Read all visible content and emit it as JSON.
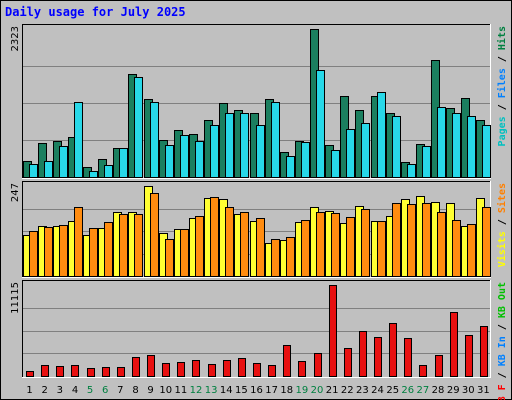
{
  "chart_data": {
    "type": "bar",
    "title": "Daily usage for July 2025",
    "categories": [
      "1",
      "2",
      "3",
      "4",
      "5",
      "6",
      "7",
      "8",
      "9",
      "10",
      "11",
      "12",
      "13",
      "14",
      "15",
      "16",
      "17",
      "18",
      "19",
      "20",
      "21",
      "22",
      "23",
      "24",
      "25",
      "26",
      "27",
      "28",
      "29",
      "30",
      "31"
    ],
    "weekend_days": [
      "5",
      "6",
      "12",
      "13",
      "19",
      "20",
      "26",
      "27"
    ],
    "panels": [
      {
        "max_label": "2323",
        "ylim": [
          0,
          2323
        ],
        "legend": [
          {
            "text": "Pages",
            "color": "#00c0c0"
          },
          {
            "text": " / ",
            "color": "#000000"
          },
          {
            "text": "Files",
            "color": "#0080ff"
          },
          {
            "text": " / ",
            "color": "#000000"
          },
          {
            "text": "Hits",
            "color": "#008040"
          }
        ],
        "series": [
          {
            "name": "Hits",
            "color": "#1b7f5f",
            "values": [
              250,
              540,
              560,
              620,
              150,
              280,
              460,
              1610,
              1220,
              580,
              730,
              680,
              890,
              1160,
              1050,
              1000,
              1220,
              390,
              570,
              2323,
              500,
              1270,
              1050,
              1270,
              1010,
              240,
              520,
              1840,
              1090,
              1240,
              890
            ]
          },
          {
            "name": "Files",
            "color": "#28d8e8",
            "values": [
              200,
              250,
              480,
              1170,
              100,
              190,
              450,
              1570,
              1180,
              500,
              660,
              570,
              810,
              1010,
              1000,
              820,
              1170,
              330,
              550,
              1680,
              430,
              760,
              850,
              1330,
              950,
              200,
              490,
              1100,
              1010,
              950,
              810
            ]
          }
        ]
      },
      {
        "max_label": "247",
        "ylim": [
          0,
          247
        ],
        "legend": [
          {
            "text": "Visits",
            "color": "#ffff00"
          },
          {
            "text": " / ",
            "color": "#000000"
          },
          {
            "text": "Sites",
            "color": "#ff8000"
          }
        ],
        "series": [
          {
            "name": "Visits",
            "color": "#ffff33",
            "values": [
              113,
              137,
              137,
              150,
              113,
              132,
              176,
              175,
              247,
              118,
              130,
              158,
              215,
              211,
              171,
              152,
              91,
              100,
              149,
              188,
              179,
              145,
              192,
              151,
              165,
              212,
              219,
              203,
              201,
              136,
              215
            ]
          },
          {
            "name": "Sites",
            "color": "#ff8c10",
            "values": [
              123,
              135,
              140,
              188,
              131,
              148,
              169,
              171,
              228,
              102,
              128,
              165,
              217,
              189,
              175,
              158,
              101,
              107,
              153,
              176,
              172,
              163,
              183,
              150,
              200,
              197,
              201,
              177,
              155,
              143,
              190
            ]
          }
        ]
      },
      {
        "max_label": "11115",
        "ylim": [
          0,
          11115
        ],
        "legend": [
          {
            "text": "KB F",
            "color": "#ff0000"
          },
          {
            "text": " / ",
            "color": "#000000"
          },
          {
            "text": "KB In",
            "color": "#0080ff"
          },
          {
            "text": " / ",
            "color": "#000000"
          },
          {
            "text": "KB Out",
            "color": "#00c000"
          }
        ],
        "series": [
          {
            "name": "KB F",
            "color": "#e81010",
            "values": [
              650,
              1300,
              1250,
              1300,
              1000,
              1100,
              1050,
              2300,
              2600,
              1550,
              1750,
              1900,
              1450,
              2000,
              2200,
              1550,
              1400,
              3800,
              1850,
              2800,
              11115,
              3400,
              5550,
              4800,
              6500,
              4600,
              1350,
              2600,
              7800,
              5000,
              6100
            ]
          }
        ]
      }
    ]
  }
}
